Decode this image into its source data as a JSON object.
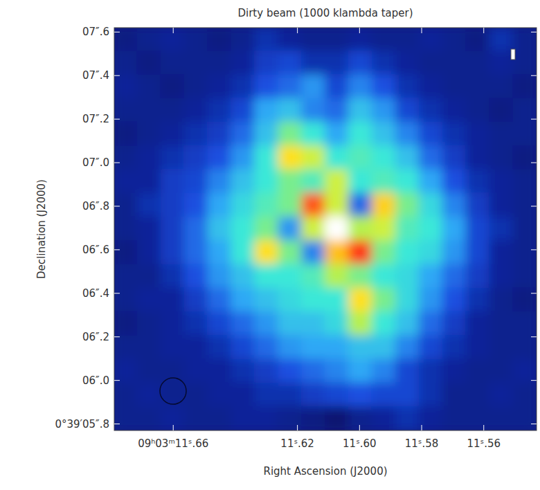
{
  "chart_data": {
    "type": "heatmap",
    "title": "Dirty beam (1000 klambda taper)",
    "xlabel": "Right Ascension (J2000)",
    "ylabel": "Declination (J2000)",
    "xlim": [
      11.679,
      11.543
    ],
    "ylim": [
      5.77,
      7.62
    ],
    "xticks": [
      {
        "value": 11.66,
        "label": "09ʰ03ᵐ11ˢ.66"
      },
      {
        "value": 11.62,
        "label": "11ˢ.62"
      },
      {
        "value": 11.6,
        "label": "11ˢ.60"
      },
      {
        "value": 11.58,
        "label": "11ˢ.58"
      },
      {
        "value": 11.56,
        "label": "11ˢ.56"
      }
    ],
    "yticks": [
      {
        "value": 7.6,
        "label": "07″.6"
      },
      {
        "value": 7.4,
        "label": "07″.4"
      },
      {
        "value": 7.2,
        "label": "07″.2"
      },
      {
        "value": 7.0,
        "label": "07″.0"
      },
      {
        "value": 6.8,
        "label": "06″.8"
      },
      {
        "value": 6.6,
        "label": "06″.6"
      },
      {
        "value": 6.4,
        "label": "06″.4"
      },
      {
        "value": 6.2,
        "label": "06″.2"
      },
      {
        "value": 6.0,
        "label": "06″.0"
      },
      {
        "value": 5.8,
        "label": "0°39′05″.8"
      }
    ],
    "zlim": [
      0,
      1
    ],
    "z": [
      [
        0.18,
        0.2,
        0.22,
        0.2,
        0.18,
        0.2,
        0.25,
        0.22,
        0.2,
        0.2,
        0.22,
        0.2,
        0.2,
        0.22,
        0.2,
        0.18,
        0.25,
        0.2
      ],
      [
        0.2,
        0.18,
        0.2,
        0.2,
        0.2,
        0.22,
        0.28,
        0.3,
        0.25,
        0.25,
        0.3,
        0.25,
        0.22,
        0.2,
        0.2,
        0.2,
        0.22,
        0.2
      ],
      [
        0.22,
        0.2,
        0.18,
        0.2,
        0.22,
        0.25,
        0.32,
        0.35,
        0.4,
        0.3,
        0.38,
        0.32,
        0.25,
        0.22,
        0.2,
        0.2,
        0.2,
        0.18
      ],
      [
        0.2,
        0.2,
        0.2,
        0.22,
        0.25,
        0.3,
        0.42,
        0.45,
        0.38,
        0.35,
        0.45,
        0.4,
        0.3,
        0.25,
        0.22,
        0.2,
        0.18,
        0.2
      ],
      [
        0.18,
        0.2,
        0.22,
        0.25,
        0.28,
        0.35,
        0.45,
        0.55,
        0.5,
        0.42,
        0.5,
        0.45,
        0.38,
        0.3,
        0.25,
        0.22,
        0.2,
        0.2
      ],
      [
        0.2,
        0.22,
        0.25,
        0.28,
        0.32,
        0.4,
        0.5,
        0.68,
        0.62,
        0.5,
        0.52,
        0.5,
        0.45,
        0.35,
        0.28,
        0.22,
        0.2,
        0.18
      ],
      [
        0.22,
        0.22,
        0.28,
        0.3,
        0.38,
        0.45,
        0.5,
        0.55,
        0.52,
        0.62,
        0.5,
        0.52,
        0.5,
        0.42,
        0.32,
        0.25,
        0.22,
        0.2
      ],
      [
        0.2,
        0.25,
        0.28,
        0.32,
        0.42,
        0.48,
        0.52,
        0.55,
        0.8,
        0.62,
        0.35,
        0.7,
        0.55,
        0.48,
        0.38,
        0.28,
        0.22,
        0.2
      ],
      [
        0.2,
        0.22,
        0.28,
        0.35,
        0.45,
        0.5,
        0.55,
        0.4,
        0.62,
        1.0,
        0.6,
        0.62,
        0.52,
        0.5,
        0.42,
        0.3,
        0.25,
        0.2
      ],
      [
        0.18,
        0.22,
        0.28,
        0.35,
        0.42,
        0.5,
        0.68,
        0.55,
        0.38,
        0.72,
        0.82,
        0.55,
        0.5,
        0.48,
        0.4,
        0.3,
        0.22,
        0.2
      ],
      [
        0.2,
        0.2,
        0.25,
        0.32,
        0.4,
        0.45,
        0.5,
        0.5,
        0.52,
        0.6,
        0.55,
        0.5,
        0.48,
        0.42,
        0.35,
        0.28,
        0.22,
        0.2
      ],
      [
        0.2,
        0.22,
        0.22,
        0.28,
        0.35,
        0.42,
        0.45,
        0.48,
        0.5,
        0.5,
        0.68,
        0.55,
        0.48,
        0.4,
        0.32,
        0.25,
        0.2,
        0.18
      ],
      [
        0.18,
        0.2,
        0.22,
        0.25,
        0.3,
        0.35,
        0.4,
        0.45,
        0.45,
        0.48,
        0.6,
        0.5,
        0.45,
        0.35,
        0.28,
        0.22,
        0.2,
        0.2
      ],
      [
        0.2,
        0.2,
        0.22,
        0.22,
        0.25,
        0.3,
        0.35,
        0.4,
        0.42,
        0.42,
        0.45,
        0.45,
        0.38,
        0.3,
        0.25,
        0.22,
        0.2,
        0.2
      ],
      [
        0.22,
        0.2,
        0.2,
        0.22,
        0.22,
        0.25,
        0.28,
        0.32,
        0.35,
        0.38,
        0.42,
        0.38,
        0.3,
        0.25,
        0.22,
        0.2,
        0.2,
        0.22
      ],
      [
        0.2,
        0.22,
        0.2,
        0.2,
        0.22,
        0.22,
        0.25,
        0.25,
        0.28,
        0.3,
        0.32,
        0.3,
        0.3,
        0.25,
        0.2,
        0.2,
        0.22,
        0.2
      ],
      [
        0.2,
        0.2,
        0.22,
        0.2,
        0.2,
        0.22,
        0.22,
        0.2,
        0.18,
        0.15,
        0.2,
        0.22,
        0.25,
        0.22,
        0.2,
        0.2,
        0.2,
        0.2
      ]
    ]
  }
}
